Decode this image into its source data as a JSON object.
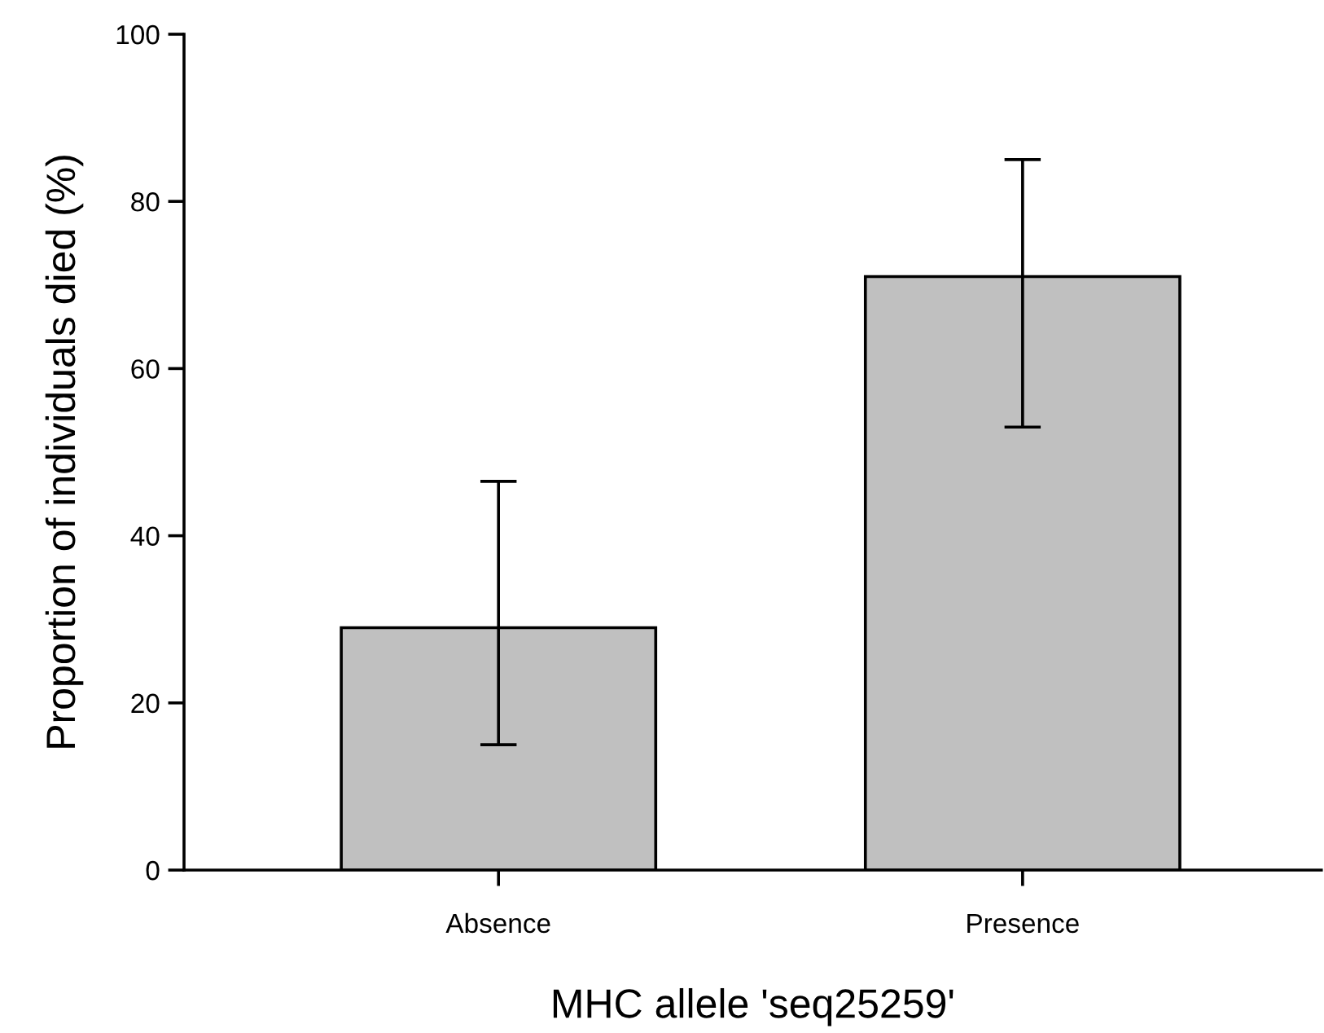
{
  "chart_data": {
    "type": "bar",
    "xlabel": "MHC allele 'seq25259'",
    "ylabel": "Proportion of individuals died (%)",
    "categories": [
      "Absence",
      "Presence"
    ],
    "values": [
      29,
      71
    ],
    "errors": [
      [
        15,
        46.5
      ],
      [
        53,
        85
      ]
    ],
    "color": "#c0c0c0",
    "ylim": [
      0,
      100
    ],
    "yticks": [
      0,
      20,
      40,
      60,
      80,
      100
    ],
    "grid": false,
    "legend": false
  }
}
